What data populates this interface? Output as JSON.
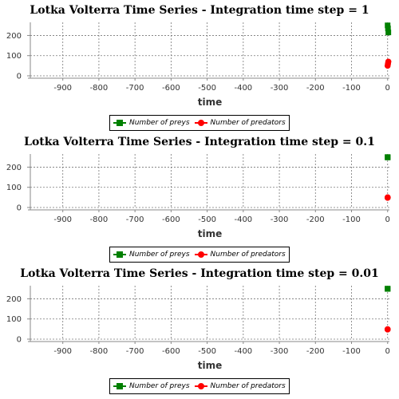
{
  "chart_data": [
    {
      "type": "line",
      "title": "Lotka Volterra Time Series - Integration time step = 1",
      "xlabel": "time",
      "ylabel": "",
      "xlim": [
        -990,
        5
      ],
      "ylim": [
        0,
        265
      ],
      "x_ticks": [
        -900,
        -800,
        -700,
        -600,
        -500,
        -400,
        -300,
        -200,
        -100,
        0
      ],
      "y_ticks": [
        0,
        100,
        200
      ],
      "grid": true,
      "legend_position": "bottom",
      "series": [
        {
          "name": "Number of preys",
          "color": "#008000",
          "marker": "square",
          "x": [
            0,
            1,
            2
          ],
          "y": [
            250,
            235,
            215
          ]
        },
        {
          "name": "Number of predators",
          "color": "#ff0000",
          "marker": "circle",
          "x": [
            0,
            1,
            2
          ],
          "y": [
            50,
            60,
            70
          ]
        }
      ]
    },
    {
      "type": "line",
      "title": "Lotka Volterra Time Series - Integration time step = 0.1",
      "xlabel": "time",
      "ylabel": "",
      "xlim": [
        -990,
        5
      ],
      "ylim": [
        0,
        265
      ],
      "x_ticks": [
        -900,
        -800,
        -700,
        -600,
        -500,
        -400,
        -300,
        -200,
        -100,
        0
      ],
      "y_ticks": [
        0,
        100,
        200
      ],
      "grid": true,
      "legend_position": "bottom",
      "series": [
        {
          "name": "Number of preys",
          "color": "#008000",
          "marker": "square",
          "x": [
            0,
            0.1,
            0.2
          ],
          "y": [
            250,
            249,
            248
          ]
        },
        {
          "name": "Number of predators",
          "color": "#ff0000",
          "marker": "circle",
          "x": [
            0,
            0.1,
            0.2
          ],
          "y": [
            48,
            49,
            50
          ]
        }
      ]
    },
    {
      "type": "line",
      "title": "Lotka Volterra Time Series - Integration time step = 0.01",
      "xlabel": "time",
      "ylabel": "",
      "xlim": [
        -990,
        5
      ],
      "ylim": [
        0,
        265
      ],
      "x_ticks": [
        -900,
        -800,
        -700,
        -600,
        -500,
        -400,
        -300,
        -200,
        -100,
        0
      ],
      "y_ticks": [
        0,
        100,
        200
      ],
      "grid": true,
      "legend_position": "bottom",
      "series": [
        {
          "name": "Number of preys",
          "color": "#008000",
          "marker": "square",
          "x": [
            0,
            0.01,
            0.02
          ],
          "y": [
            250,
            250,
            249
          ]
        },
        {
          "name": "Number of predators",
          "color": "#ff0000",
          "marker": "circle",
          "x": [
            0,
            0.01,
            0.02
          ],
          "y": [
            48,
            48,
            49
          ]
        }
      ]
    }
  ]
}
